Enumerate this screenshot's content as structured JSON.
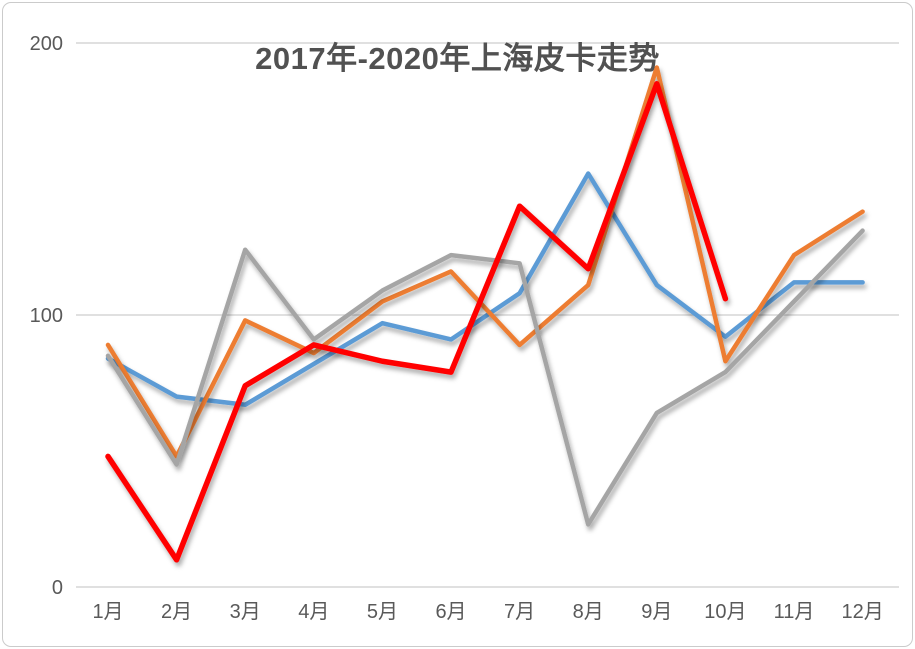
{
  "chart": {
    "title": "2017年-2020年上海皮卡走势",
    "title_color": "#515151",
    "axis_text_color": "#595959",
    "gridline_color": "#d6d6d6",
    "frame_border_color": "#cbcbcb",
    "background_color": "#ffffff"
  },
  "chart_data": {
    "type": "line",
    "title": "2017年-2020年上海皮卡走势",
    "categories": [
      "1月",
      "2月",
      "3月",
      "4月",
      "5月",
      "6月",
      "7月",
      "8月",
      "9月",
      "10月",
      "11月",
      "12月"
    ],
    "xlabel": "",
    "ylabel": "",
    "ylim": [
      0,
      200
    ],
    "y_ticks": [
      0,
      100,
      200
    ],
    "grid": true,
    "legend": "none",
    "line_style": "straight-segments-with-drop-shadow",
    "series": [
      {
        "name": "blue",
        "color": "#5B9BD5",
        "stroke_width": 4.5,
        "values": [
          84,
          70,
          67,
          82,
          97,
          91,
          108,
          152,
          111,
          92,
          112,
          112
        ]
      },
      {
        "name": "orange",
        "color": "#ED7D31",
        "stroke_width": 4.5,
        "values": [
          89,
          48,
          98,
          86,
          105,
          116,
          89,
          111,
          191,
          83,
          122,
          138
        ]
      },
      {
        "name": "gray",
        "color": "#A5A5A5",
        "stroke_width": 4.5,
        "values": [
          85,
          45,
          124,
          91,
          109,
          122,
          119,
          23,
          64,
          79,
          105,
          131
        ]
      },
      {
        "name": "red",
        "color": "#FF0000",
        "stroke_width": 5.5,
        "values": [
          48,
          10,
          74,
          89,
          83,
          79,
          140,
          117,
          185,
          106,
          null,
          null
        ]
      }
    ]
  }
}
